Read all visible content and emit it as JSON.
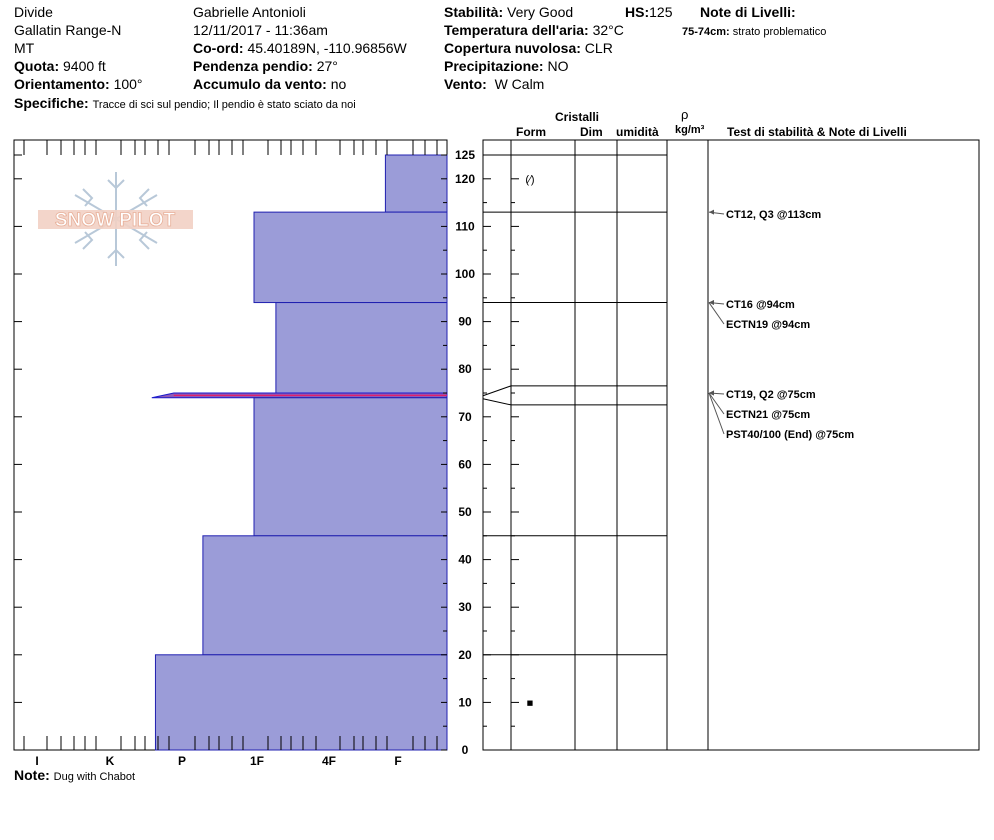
{
  "header": {
    "location": "Divide",
    "range": "Gallatin Range-N",
    "state": "MT",
    "elevation_label": "Quota:",
    "elevation_value": "9400 ft",
    "aspect_label": "Orientamento:",
    "aspect_value": "100°",
    "specifics_label": "Specifiche:",
    "specifics_value": "Tracce di sci sul pendio;  Il pendio è stato sciato da noi",
    "observer": "Gabrielle Antonioli",
    "datetime": "12/11/2017 - 11:36am",
    "coords_label": "Co-ord:",
    "coords_value": "45.40189N, -110.96856W",
    "slope_label": "Pendenza pendio:",
    "slope_value": "27°",
    "wind_loading_label": "Accumulo da vento:",
    "wind_loading_value": "no",
    "stability_label": "Stabilità:",
    "stability_value": "Very Good",
    "hs_label": "HS:",
    "hs_value": "125",
    "air_temp_label": "Temperatura dell'aria:",
    "air_temp_value": "32°C",
    "cloud_label": "Copertura nuvolosa:",
    "cloud_value": "CLR",
    "precip_label": "Precipitazione:",
    "precip_value": "NO",
    "wind_label": "Vento:",
    "wind_value": "W Calm",
    "layer_notes_label": "Note di Livelli:",
    "layer_note_range": "75-74cm:",
    "layer_note_text": "strato problematico"
  },
  "logo": {
    "text": "SNOW PILOT"
  },
  "columns": {
    "crystals": "Cristalli",
    "form": "Form",
    "size": "Dim",
    "moisture": "umidità",
    "density_symbol": "ρ",
    "density_unit": "kg/m³",
    "tests": "Test di stabilità & Note di Livelli"
  },
  "footer": {
    "note_label": "Note:",
    "note_value": "Dug with Chabot"
  },
  "chart_data": {
    "type": "bar",
    "orientation": "horizontal-step",
    "ylabel": "",
    "ylim": [
      0,
      125
    ],
    "yticks": [
      0,
      10,
      20,
      30,
      40,
      50,
      60,
      70,
      80,
      90,
      100,
      110,
      120,
      125
    ],
    "hardness_scale": [
      "I",
      "K",
      "P",
      "1F",
      "4F",
      "F"
    ],
    "layers": [
      {
        "bottom": 113,
        "top": 125,
        "hardness": 4.8
      },
      {
        "bottom": 94,
        "top": 113,
        "hardness": 3.0
      },
      {
        "bottom": 75,
        "top": 94,
        "hardness": 3.3
      },
      {
        "bottom": 74,
        "top": 75,
        "hardness": 1.6,
        "problematic": true
      },
      {
        "bottom": 45,
        "top": 74,
        "hardness": 3.0
      },
      {
        "bottom": 20,
        "top": 45,
        "hardness": 2.3
      },
      {
        "bottom": 0,
        "top": 20,
        "hardness": 1.65
      }
    ],
    "layer_boundaries": [
      125,
      113,
      94,
      76.5,
      72.5,
      45,
      20,
      0
    ],
    "crystal_symbols": [
      {
        "depth": 120,
        "symbol": "(∕)"
      },
      {
        "depth": 10,
        "symbol": "■"
      }
    ],
    "stability_tests": [
      {
        "depth": 113,
        "label": "CT12, Q3 @113cm"
      },
      {
        "depth": 94,
        "label": "CT16 @94cm"
      },
      {
        "depth": 94,
        "label": "ECTN19 @94cm"
      },
      {
        "depth": 75,
        "label": "CT19, Q2 @75cm"
      },
      {
        "depth": 75,
        "label": "ECTN21 @75cm"
      },
      {
        "depth": 75,
        "label": "PST40/100 (End) @75cm"
      }
    ]
  }
}
